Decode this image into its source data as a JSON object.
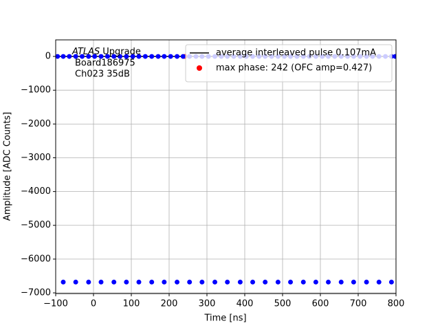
{
  "chart_data": {
    "type": "line",
    "xlabel": "Time [ns]",
    "ylabel": "Amplitude [ADC Counts]",
    "annotations": [
      "ATLAS",
      "Upgrade",
      "Board186975",
      "Ch023 35dB"
    ],
    "xlim": [
      -100,
      800
    ],
    "ylim": [
      -7020,
      490
    ],
    "xticks": [
      {
        "value": -100,
        "label": "−100"
      },
      0,
      100,
      200,
      300,
      400,
      500,
      600,
      700,
      800
    ],
    "yticks": [
      0,
      {
        "value": -1000,
        "label": "−1000"
      },
      {
        "value": -2000,
        "label": "−2000"
      },
      {
        "value": -3000,
        "label": "−3000"
      },
      {
        "value": -4000,
        "label": "−4000"
      },
      {
        "value": -5000,
        "label": "−5000"
      },
      {
        "value": -6000,
        "label": "−6000"
      },
      {
        "value": -7000,
        "label": "−7000"
      }
    ],
    "grid": true,
    "legend": "upper right",
    "series": [
      {
        "name": "average interleaved pulse 0.107mA",
        "color": "#000000",
        "style": "line",
        "x": [
          -100,
          0,
          100,
          200,
          300,
          400,
          500,
          600,
          700,
          800
        ],
        "values": [
          0,
          0,
          0,
          0,
          0,
          0,
          0,
          0,
          0,
          0
        ]
      },
      {
        "name": "max phase: 242 (OFC amp=0.427)",
        "color": "#ff0000",
        "style": "points",
        "x": [
          242
        ],
        "values": [
          0
        ]
      },
      {
        "color": "#0000ff",
        "style": "points",
        "x": [
          -80,
          -47,
          -13,
          20,
          54,
          87,
          120,
          154,
          187,
          221,
          254,
          287,
          321,
          354,
          388,
          421,
          454,
          488,
          521,
          555,
          588,
          621,
          655,
          688,
          722,
          755,
          788
        ],
        "values": [
          -6680,
          -6680,
          -6680,
          -6680,
          -6680,
          -6680,
          -6680,
          -6680,
          -6680,
          -6680,
          -6680,
          -6680,
          -6680,
          -6680,
          -6680,
          -6680,
          -6680,
          -6680,
          -6680,
          -6680,
          -6680,
          -6680,
          -6680,
          -6680,
          -6680,
          -6680,
          -6680
        ]
      },
      {
        "color": "#0000ff",
        "style": "points",
        "x": [
          -95,
          -80,
          -64,
          -47,
          -30,
          -13,
          3,
          20,
          37,
          54,
          70,
          87,
          104,
          120,
          137,
          154,
          171,
          187,
          204,
          221,
          237,
          254,
          271,
          287,
          304,
          321,
          338,
          354,
          371,
          388,
          404,
          421,
          438,
          454,
          471,
          488,
          505,
          521,
          538,
          555,
          571,
          588,
          605,
          621,
          638,
          655,
          672,
          688,
          705,
          722,
          738,
          755,
          772,
          788,
          798
        ],
        "values": [
          0,
          0,
          0,
          0,
          0,
          0,
          0,
          0,
          0,
          0,
          0,
          0,
          0,
          0,
          0,
          0,
          0,
          0,
          0,
          0,
          0,
          0,
          0,
          0,
          0,
          0,
          0,
          0,
          0,
          0,
          0,
          0,
          0,
          0,
          0,
          0,
          0,
          0,
          0,
          0,
          0,
          0,
          0,
          0,
          0,
          0,
          0,
          0,
          0,
          0,
          0,
          0,
          0,
          0,
          0
        ]
      }
    ]
  }
}
